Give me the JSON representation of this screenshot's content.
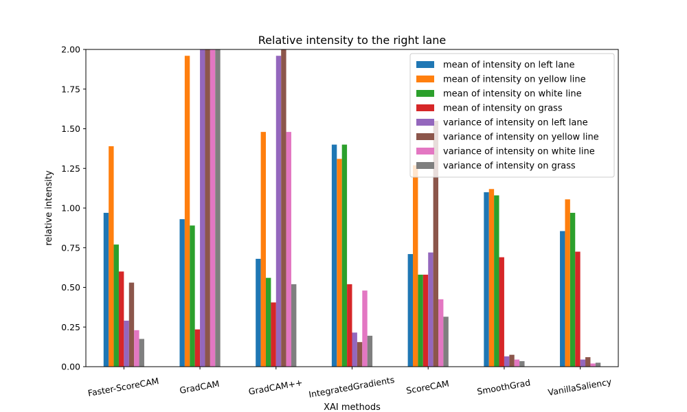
{
  "chart_data": {
    "type": "bar",
    "title": "Relative intensity to the right lane",
    "xlabel": "XAI methods",
    "ylabel": "relative intensity",
    "ylim": [
      0,
      2.0
    ],
    "yticks": [
      "0.00",
      "0.25",
      "0.50",
      "0.75",
      "1.00",
      "1.25",
      "1.50",
      "1.75",
      "2.00"
    ],
    "legend_position": "top-right",
    "grid": false,
    "categories": [
      "Faster-ScoreCAM",
      "GradCAM",
      "GradCAM++",
      "IntegratedGradients",
      "ScoreCAM",
      "SmoothGrad",
      "VanillaSaliency"
    ],
    "series": [
      {
        "name": "mean of intensity on left lane",
        "color": "#1f77b4",
        "values": [
          0.97,
          0.93,
          0.68,
          1.4,
          0.71,
          1.1,
          0.855
        ]
      },
      {
        "name": "mean of intensity on yellow line",
        "color": "#ff7f0e",
        "values": [
          1.39,
          1.96,
          1.48,
          1.31,
          1.27,
          1.12,
          1.055
        ]
      },
      {
        "name": "mean of intensity on white line",
        "color": "#2ca02c",
        "values": [
          0.77,
          0.89,
          0.56,
          1.4,
          0.58,
          1.08,
          0.97
        ]
      },
      {
        "name": "mean of intensity on grass",
        "color": "#d62728",
        "values": [
          0.6,
          0.235,
          0.405,
          0.52,
          0.58,
          0.69,
          0.725
        ]
      },
      {
        "name": "variance of intensity on left lane",
        "color": "#9467bd",
        "values": [
          0.29,
          2.0,
          1.96,
          0.215,
          0.72,
          0.065,
          0.045
        ]
      },
      {
        "name": "variance of intensity on yellow line",
        "color": "#8c564b",
        "values": [
          0.53,
          2.0,
          2.0,
          0.155,
          1.55,
          0.075,
          0.06
        ]
      },
      {
        "name": "variance of intensity on white line",
        "color": "#e377c2",
        "values": [
          0.23,
          2.0,
          1.48,
          0.48,
          0.425,
          0.045,
          0.02
        ]
      },
      {
        "name": "variance of intensity on grass",
        "color": "#7f7f7f",
        "values": [
          0.175,
          2.0,
          0.52,
          0.195,
          0.315,
          0.035,
          0.025
        ]
      }
    ]
  }
}
